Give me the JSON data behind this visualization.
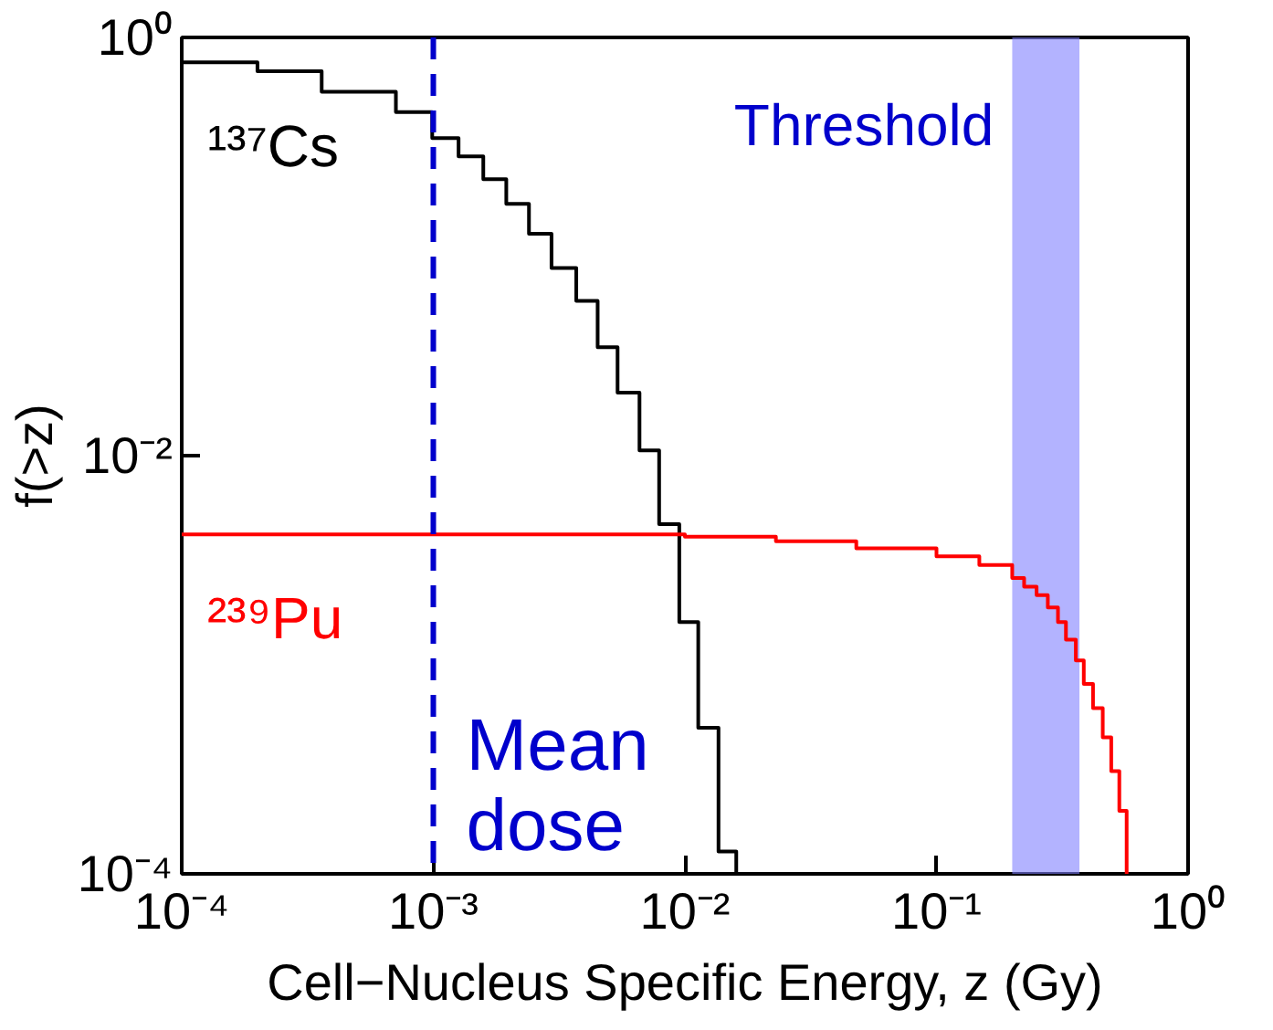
{
  "chart_data": {
    "type": "step",
    "xlabel": "Cell−Nucleus Specific Energy, z (Gy)",
    "ylabel": "f(>z)",
    "log": "xy",
    "grid": false,
    "xlim": [
      0.0001,
      1
    ],
    "ylim": [
      0.0001,
      1
    ],
    "xticks": [
      {
        "value": 0.0001,
        "label": "10⁻⁴"
      },
      {
        "value": 0.001,
        "label": "10⁻³"
      },
      {
        "value": 0.01,
        "label": "10⁻²"
      },
      {
        "value": 0.1,
        "label": "10⁻¹"
      },
      {
        "value": 1,
        "label": "10⁰"
      }
    ],
    "yticks": [
      {
        "value": 0.0001,
        "label": "10⁻⁴"
      },
      {
        "value": 0.01,
        "label": "10⁻²"
      },
      {
        "value": 1,
        "label": "10⁰"
      }
    ],
    "series": [
      {
        "name": "¹³⁷Cs",
        "color": "#000000",
        "x": [
          0.0001,
          0.0002,
          0.00036,
          0.00071,
          0.00099,
          0.00126,
          0.00158,
          0.00195,
          0.0024,
          0.00295,
          0.0037,
          0.0045,
          0.0054,
          0.0066,
          0.0079,
          0.0095,
          0.0113,
          0.0136,
          0.016
        ],
        "values": [
          0.76,
          0.69,
          0.55,
          0.44,
          0.33,
          0.27,
          0.21,
          0.16,
          0.115,
          0.079,
          0.055,
          0.033,
          0.02,
          0.0106,
          0.0047,
          0.0016,
          0.0005,
          0.000128,
          0.0001
        ]
      },
      {
        "name": "²³⁹Pu",
        "color": "#ff0000",
        "x": [
          0.0001,
          0.001,
          0.01,
          0.023,
          0.048,
          0.1,
          0.148,
          0.2,
          0.223,
          0.25,
          0.277,
          0.304,
          0.327,
          0.358,
          0.385,
          0.419,
          0.458,
          0.495,
          0.533,
          0.57
        ],
        "values": [
          0.0042,
          0.0042,
          0.0041,
          0.0039,
          0.0036,
          0.0033,
          0.003,
          0.0026,
          0.00236,
          0.00215,
          0.00188,
          0.0016,
          0.00132,
          0.00105,
          0.00081,
          0.00062,
          0.00045,
          0.00031,
          0.0002,
          0.0001
        ]
      }
    ],
    "ref_lines": [
      {
        "axis": "x",
        "value": 0.001,
        "label": "Mean dose",
        "color": "#0000cc",
        "line_style": "dashed"
      }
    ],
    "bands": [
      {
        "axis": "x",
        "from": 0.2,
        "to": 0.37,
        "label": "Threshold",
        "color": "#8080ff"
      }
    ]
  }
}
